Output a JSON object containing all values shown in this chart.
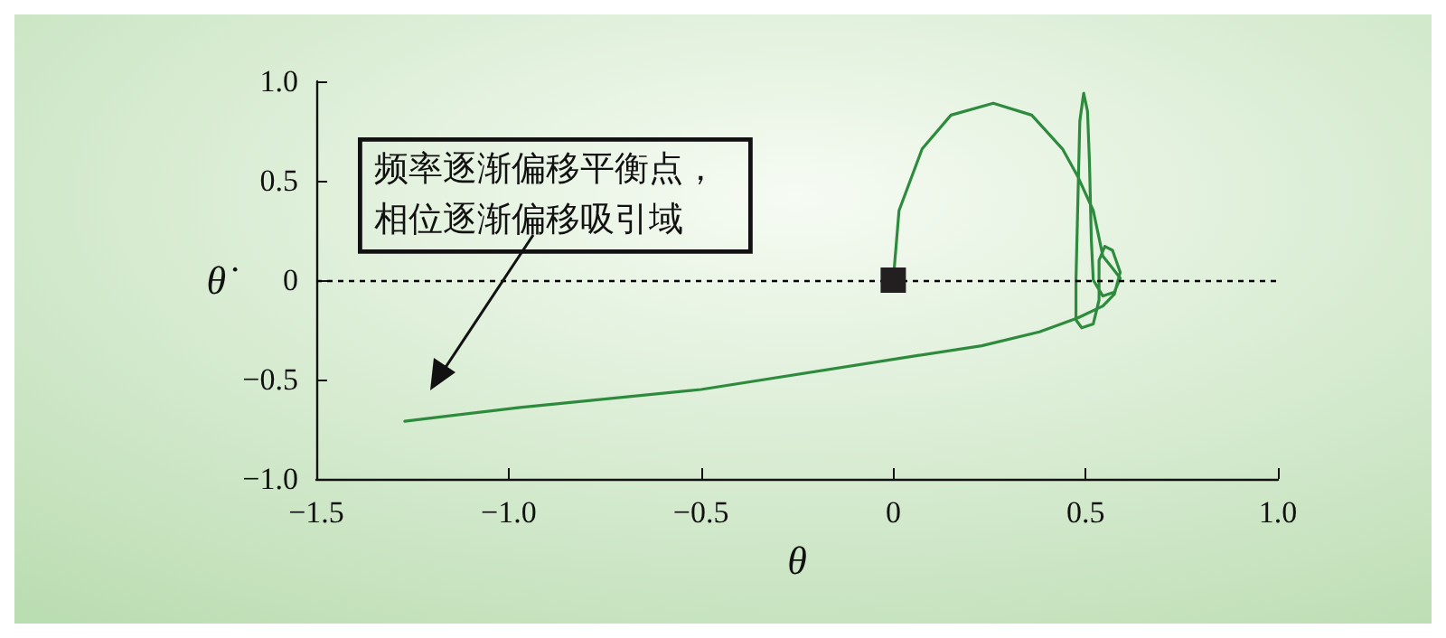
{
  "chart_data": {
    "type": "line",
    "xlabel": "θ",
    "ylabel": "θ̇",
    "xlim": [
      -1.5,
      1.0
    ],
    "ylim": [
      -1.0,
      1.0
    ],
    "xticks": [
      {
        "value": -1.5,
        "label": "−1.5"
      },
      {
        "value": -1.0,
        "label": "−1.0"
      },
      {
        "value": -0.5,
        "label": "−0.5"
      },
      0,
      0.5,
      {
        "value": 1.0,
        "label": "1.0"
      }
    ],
    "yticks": [
      {
        "value": -1.0,
        "label": "−1.0"
      },
      {
        "value": -0.5,
        "label": "−0.5"
      },
      0,
      0.5,
      {
        "value": 1.0,
        "label": "1.0"
      }
    ],
    "grid": false,
    "series": [
      {
        "color": "#2e8b3e",
        "marker": "none",
        "line_style": "solid",
        "x": [
          0,
          0.003,
          0.015,
          0.075,
          0.15,
          0.26,
          0.36,
          0.44,
          0.48,
          0.52,
          0.545,
          0.57,
          0.59,
          0.575,
          0.545,
          0.52,
          0.515,
          0.51,
          0.505,
          0.495,
          0.485,
          0.48,
          0.475,
          0.475,
          0.49,
          0.52,
          0.535,
          0.535,
          0.55,
          0.57,
          0.59,
          0.575,
          0.545,
          0.48,
          0.38,
          0.23,
          0.06,
          -0.5,
          -0.97,
          -1.27
        ],
        "values": [
          0,
          0.07,
          0.35,
          0.66,
          0.83,
          0.89,
          0.83,
          0.66,
          0.52,
          0.35,
          0.12,
          0.06,
          0.01,
          -0.06,
          -0.08,
          0.0,
          0.2,
          0.6,
          0.85,
          0.94,
          0.8,
          0.4,
          0.0,
          -0.2,
          -0.24,
          -0.22,
          -0.1,
          0.1,
          0.17,
          0.15,
          0.04,
          -0.07,
          -0.13,
          -0.19,
          -0.26,
          -0.33,
          -0.38,
          -0.55,
          -0.64,
          -0.71
        ]
      },
      {
        "type": "scatter",
        "color": "#231f20",
        "marker": "square",
        "x": [
          0
        ],
        "values": [
          0
        ]
      }
    ],
    "ref_lines": [
      {
        "axis": "y",
        "value": 0,
        "color": "#000000",
        "line_style": "dotted"
      }
    ],
    "annotations": [
      "频率逐渐偏移平衡点，相位逐渐偏移吸引域"
    ]
  }
}
